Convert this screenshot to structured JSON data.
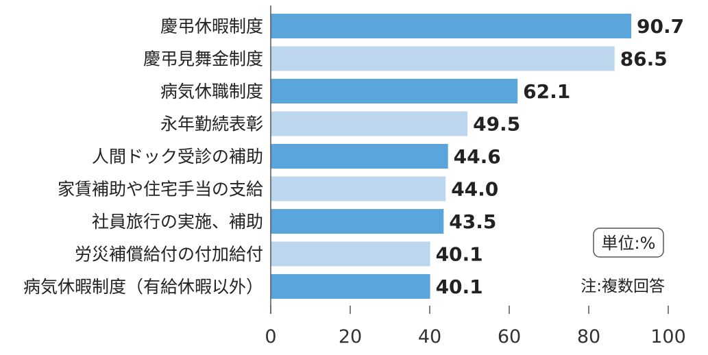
{
  "chart_data": {
    "type": "bar",
    "orientation": "horizontal",
    "categories": [
      "慶弔休暇制度",
      "慶弔見舞金制度",
      "病気休職制度",
      "永年勤続表彰",
      "人間ドック受診の補助",
      "家賃補助や住宅手当の支給",
      "社員旅行の実施、補助",
      "労災補償給付の付加給付",
      "病気休暇制度（有給休暇以外）"
    ],
    "values": [
      90.7,
      86.5,
      62.1,
      49.5,
      44.6,
      44.0,
      43.5,
      40.1,
      40.1
    ],
    "value_labels": [
      "90.7",
      "86.5",
      "62.1",
      "49.5",
      "44.6",
      "44.0",
      "43.5",
      "40.1",
      "40.1"
    ],
    "xlim": [
      0,
      100
    ],
    "xticks": [
      0,
      20,
      40,
      60,
      80,
      100
    ],
    "xtick_labels": [
      "0",
      "20",
      "40",
      "60",
      "80",
      "100"
    ],
    "unit_label": "単位:%",
    "note": "注:複数回答",
    "grid": false,
    "colors": {
      "bar_dark": "#5aa5dc",
      "bar_light": "#bcd6ee",
      "axis": "#555555"
    }
  }
}
